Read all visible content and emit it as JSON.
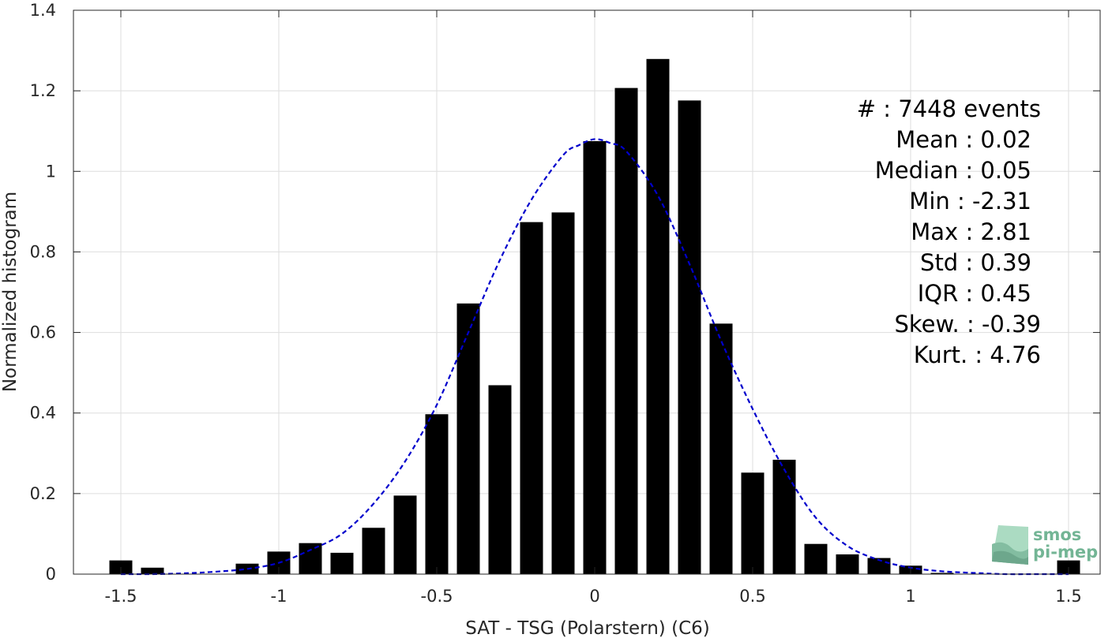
{
  "chart_data": {
    "type": "bar",
    "xlabel": "SAT - TSG (Polarstern) (C6)",
    "ylabel": "Normalized histogram",
    "xlim": [
      -1.65,
      1.6
    ],
    "ylim": [
      0,
      1.4
    ],
    "xticks": [
      -1.5,
      -1,
      -0.5,
      0,
      0.5,
      1,
      1.5
    ],
    "xtick_labels": [
      "-1.5",
      "-1",
      "-0.5",
      "0",
      "0.5",
      "1",
      "1.5"
    ],
    "yticks": [
      0,
      0.2,
      0.4,
      0.6,
      0.8,
      1,
      1.2,
      1.4
    ],
    "ytick_labels": [
      "0",
      "0.2",
      "0.4",
      "0.6",
      "0.8",
      "1",
      "1.2",
      "1.4"
    ],
    "grid": true,
    "bar_color": "#000000",
    "fit_color": "#0000cc",
    "x": [
      -1.5,
      -1.4,
      -1.3,
      -1.2,
      -1.1,
      -1.0,
      -0.9,
      -0.8,
      -0.7,
      -0.6,
      -0.5,
      -0.4,
      -0.3,
      -0.2,
      -0.1,
      0.0,
      0.1,
      0.2,
      0.3,
      0.4,
      0.5,
      0.6,
      0.7,
      0.8,
      0.9,
      1.0,
      1.1,
      1.2,
      1.3,
      1.4,
      1.5
    ],
    "values": [
      0.034,
      0.016,
      0.0,
      0.0,
      0.026,
      0.056,
      0.077,
      0.053,
      0.115,
      0.195,
      0.397,
      0.672,
      0.469,
      0.874,
      0.898,
      1.075,
      1.207,
      1.279,
      1.176,
      0.622,
      0.252,
      0.284,
      0.075,
      0.049,
      0.04,
      0.021,
      0.003,
      0.0,
      0.0,
      0.0,
      0.034
    ],
    "fit_curve": {
      "style": "dashed",
      "x": [
        -1.5,
        -1.4,
        -1.3,
        -1.2,
        -1.1,
        -1.0,
        -0.9,
        -0.8,
        -0.7,
        -0.6,
        -0.5,
        -0.4,
        -0.3,
        -0.2,
        -0.1,
        -0.05,
        0.0,
        0.05,
        0.1,
        0.2,
        0.3,
        0.4,
        0.5,
        0.6,
        0.7,
        0.8,
        0.9,
        1.0,
        1.1,
        1.2,
        1.3,
        1.4,
        1.5
      ],
      "y": [
        0.0,
        0.0,
        0.002,
        0.006,
        0.013,
        0.028,
        0.06,
        0.1,
        0.175,
        0.28,
        0.42,
        0.6,
        0.78,
        0.93,
        1.04,
        1.065,
        1.08,
        1.07,
        1.05,
        0.94,
        0.77,
        0.58,
        0.41,
        0.26,
        0.14,
        0.07,
        0.035,
        0.016,
        0.007,
        0.003,
        0.0,
        0.0,
        0.0
      ]
    }
  },
  "stats": [
    {
      "label": "#  : 7448 events"
    },
    {
      "label": "Mean : 0.02"
    },
    {
      "label": "Median : 0.05"
    },
    {
      "label": "Min : -2.31"
    },
    {
      "label": "Max : 2.81"
    },
    {
      "label": "Std : 0.39"
    },
    {
      "label": "IQR : 0.45"
    },
    {
      "label": "Skew. : -0.39"
    },
    {
      "label": "Kurt. : 4.76"
    }
  ],
  "logo": {
    "line1": "smos",
    "line2": "pi-mep",
    "color": "#5aa882"
  }
}
